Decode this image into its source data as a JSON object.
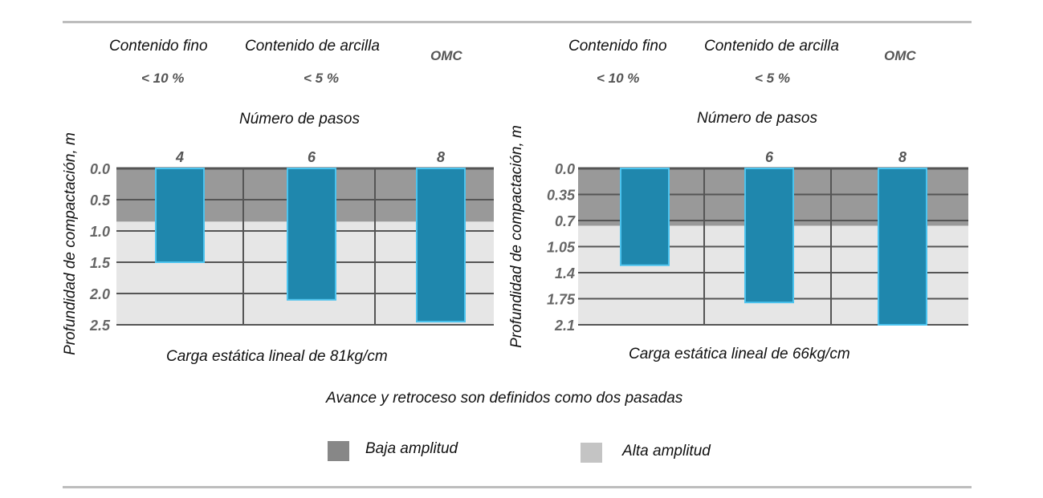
{
  "footnote": "Avance y retroceso son definidos como dos pasadas",
  "legend": [
    {
      "label": "Baja amplitud",
      "color": "#878787"
    },
    {
      "label": "Alta amplitud",
      "color": "#c4c4c4"
    }
  ],
  "colors": {
    "bar": "#1f87ad",
    "bar_edge": "#4cc3ee",
    "low_band": "#999999",
    "high_band": "#e6e6e6",
    "grid": "#555555"
  },
  "chart_data": [
    {
      "type": "bar",
      "title": "Número de pasos",
      "xlabel": "Carga estática lineal de 81kg/cm",
      "ylabel": "Profundidad de compactación, m",
      "header": {
        "col1_title": "Contenido fino",
        "col1_value": "< 10 %",
        "col2_title": "Contenido de arcilla",
        "col2_value": "< 5 %",
        "col3_title": "OMC"
      },
      "categories": [
        "4",
        "6",
        "8"
      ],
      "values": [
        1.5,
        2.1,
        2.45
      ],
      "yticks": [
        "0.0",
        "0.5",
        "1.0",
        "1.5",
        "2.0",
        "2.5"
      ],
      "ylim": [
        0,
        2.5
      ],
      "y_inverted": true,
      "low_amplitude_depth": 0.85
    },
    {
      "type": "bar",
      "title": "Número de pasos",
      "xlabel": "Carga estática lineal de 66kg/cm",
      "ylabel": "Profundidad de compactación, m",
      "header": {
        "col1_title": "Contenido fino",
        "col1_value": "< 10 %",
        "col2_title": "Contenido de arcilla",
        "col2_value": "< 5 %",
        "col3_title": "OMC"
      },
      "categories": [
        "",
        "6",
        "8"
      ],
      "values": [
        1.3,
        1.8,
        2.1
      ],
      "yticks": [
        "0.0",
        "0.35",
        "0.7",
        "1.05",
        "1.4",
        "1.75",
        "2.1"
      ],
      "ylim": [
        0,
        2.1
      ],
      "y_inverted": true,
      "low_amplitude_depth": 0.77
    }
  ]
}
